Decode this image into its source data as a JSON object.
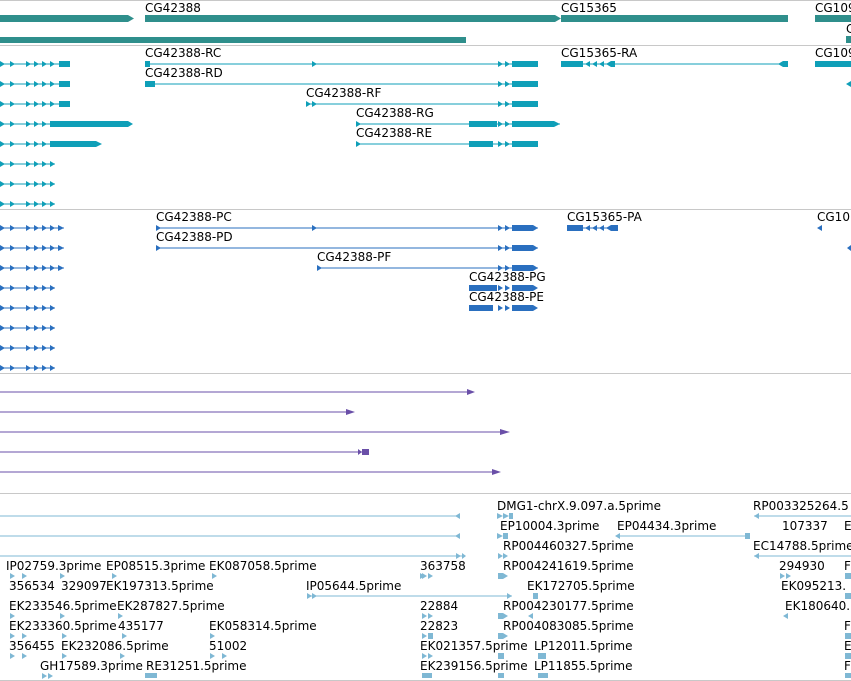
{
  "colors": {
    "gene": "#2f8f8c",
    "rna": "#0f9fb8",
    "protein": "#2a6fbf",
    "cdna": "#6a4fa8",
    "est": "#7fb8d4",
    "divider": "#c0c0c0"
  },
  "gene_track": {
    "labels": [
      "CG42388",
      "CG15365",
      "CG109"
    ]
  },
  "transcript_track": {
    "labels": [
      "CG42388-RC",
      "CG15365-RA",
      "CG109",
      "CG42388-RD",
      "CG42388-RF",
      "CG42388-RG",
      "CG42388-RE"
    ]
  },
  "protein_track": {
    "labels": [
      "CG42388-PC",
      "CG15365-PA",
      "CG10",
      "CG42388-PD",
      "CG42388-PF",
      "CG42388-PG",
      "CG42388-PE"
    ]
  },
  "est_track": {
    "labels": [
      "DMG1-chrX.9.097.a.5prime",
      "RP003325264.5",
      "EP10004.3prime",
      "EP04434.3prime",
      "107337",
      "E",
      "RP004460327.5prime",
      "EC14788.5prime",
      "IP02759.3prime",
      "EP08515.3prime",
      "EK087058.5prime",
      "363758",
      "RP004241619.5prime",
      "294930",
      "F",
      "356534",
      "329097",
      "EK197313.5prime",
      "EK172705.5prime",
      "EK095213.",
      "IP05644.5prime",
      "EK233546.5prime",
      "EK287827.5prime",
      "22884",
      "RP004230177.5prime",
      "EK180640.",
      "EK233360.5prime",
      "435177",
      "EK058314.5prime",
      "22823",
      "RP004083085.5prime",
      "F",
      "356455",
      "EK232086.5prime",
      "51002",
      "EK021357.5prime",
      "LP12011.5prime",
      "E",
      "GH17589.3prime",
      "RE31251.5prime",
      "EK239156.5prime",
      "LP11855.5prime",
      "F"
    ]
  }
}
